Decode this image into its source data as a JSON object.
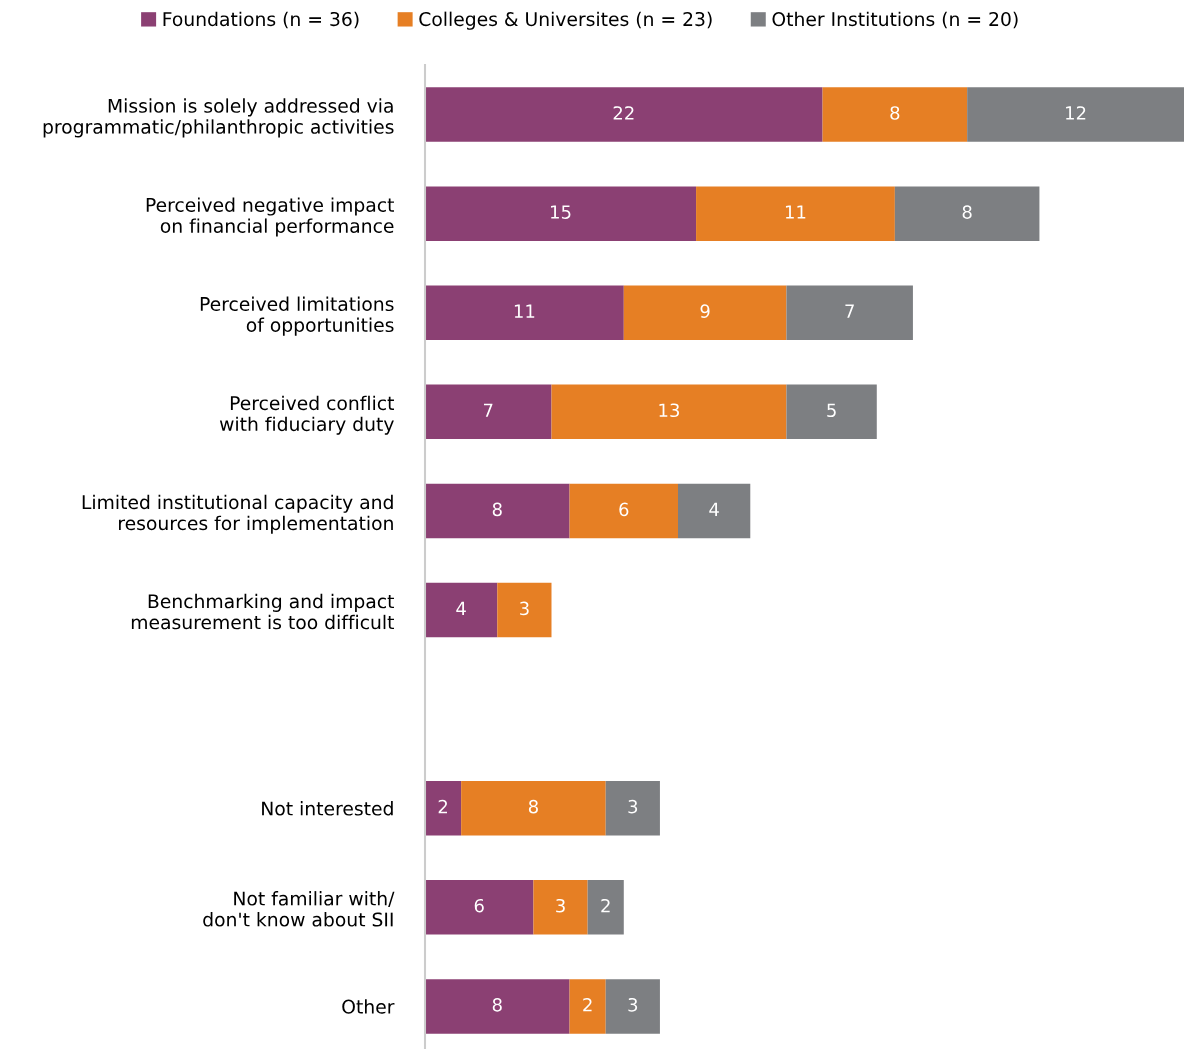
{
  "chart_data": {
    "type": "bar",
    "orientation": "horizontal",
    "stacked": true,
    "data_labels": true,
    "legend": "top",
    "grid": false,
    "tick_labels": "y",
    "xlim": [
      0,
      42
    ],
    "categories": [
      "Mission is solely addressed via\nprogrammatic/philanthropic activities",
      "Perceived negative impact\non financial performance",
      "Perceived limitations\nof opportunities",
      "Perceived conflict\nwith fiduciary duty",
      "Limited institutional capacity and\nresources for implementation",
      "Benchmarking and impact\nmeasurement is too difficult",
      null,
      "Not interested",
      "Not familiar with/\ndon't know about SII",
      "Other"
    ],
    "series": [
      {
        "name": "Foundations (n = 36)",
        "color": "#8b4073",
        "values": [
          22,
          15,
          11,
          7,
          8,
          4,
          null,
          2,
          6,
          8
        ]
      },
      {
        "name": "Colleges & Universites (n = 23)",
        "color": "#e67f24",
        "values": [
          8,
          11,
          9,
          13,
          6,
          3,
          null,
          8,
          3,
          2
        ]
      },
      {
        "name": "Other Institutions (n = 20)",
        "color": "#7d7f82",
        "values": [
          12,
          8,
          7,
          5,
          4,
          null,
          null,
          3,
          2,
          3
        ]
      }
    ]
  }
}
